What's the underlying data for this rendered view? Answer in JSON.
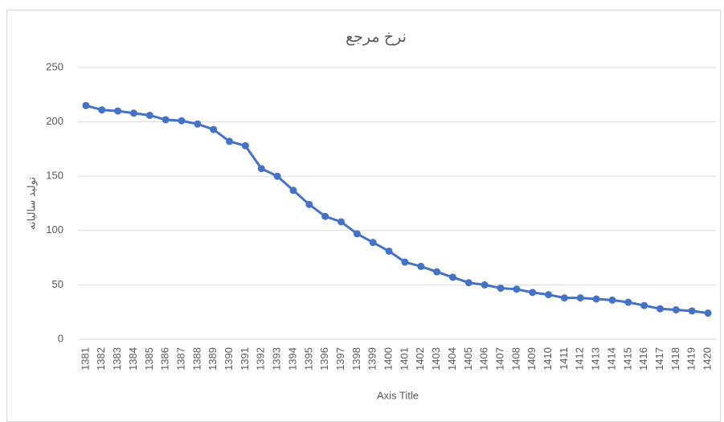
{
  "chart_data": {
    "type": "line",
    "title": "نرخ مرجع",
    "y_label": "تولید سالیانه",
    "x_label": "Axis Title",
    "categories": [
      "1381",
      "1382",
      "1383",
      "1384",
      "1385",
      "1386",
      "1387",
      "1388",
      "1389",
      "1390",
      "1391",
      "1392",
      "1393",
      "1394",
      "1395",
      "1396",
      "1397",
      "1398",
      "1399",
      "1400",
      "1401",
      "1402",
      "1403",
      "1404",
      "1405",
      "1406",
      "1407",
      "1408",
      "1409",
      "1410",
      "1411",
      "1412",
      "1413",
      "1414",
      "1415",
      "1416",
      "1417",
      "1418",
      "1419",
      "1420"
    ],
    "values": [
      215,
      211,
      210,
      208,
      206,
      202,
      201,
      198,
      193,
      182,
      178,
      157,
      150,
      137,
      124,
      113,
      108,
      97,
      89,
      81,
      71,
      67,
      62,
      57,
      52,
      50,
      47,
      46,
      43,
      41,
      38,
      38,
      37,
      36,
      34,
      31,
      28,
      27,
      26,
      24
    ],
    "color": "#4472c4",
    "ylim": [
      0,
      250
    ],
    "yticks": [
      0,
      50,
      100,
      150,
      200,
      250
    ],
    "grid": true
  }
}
